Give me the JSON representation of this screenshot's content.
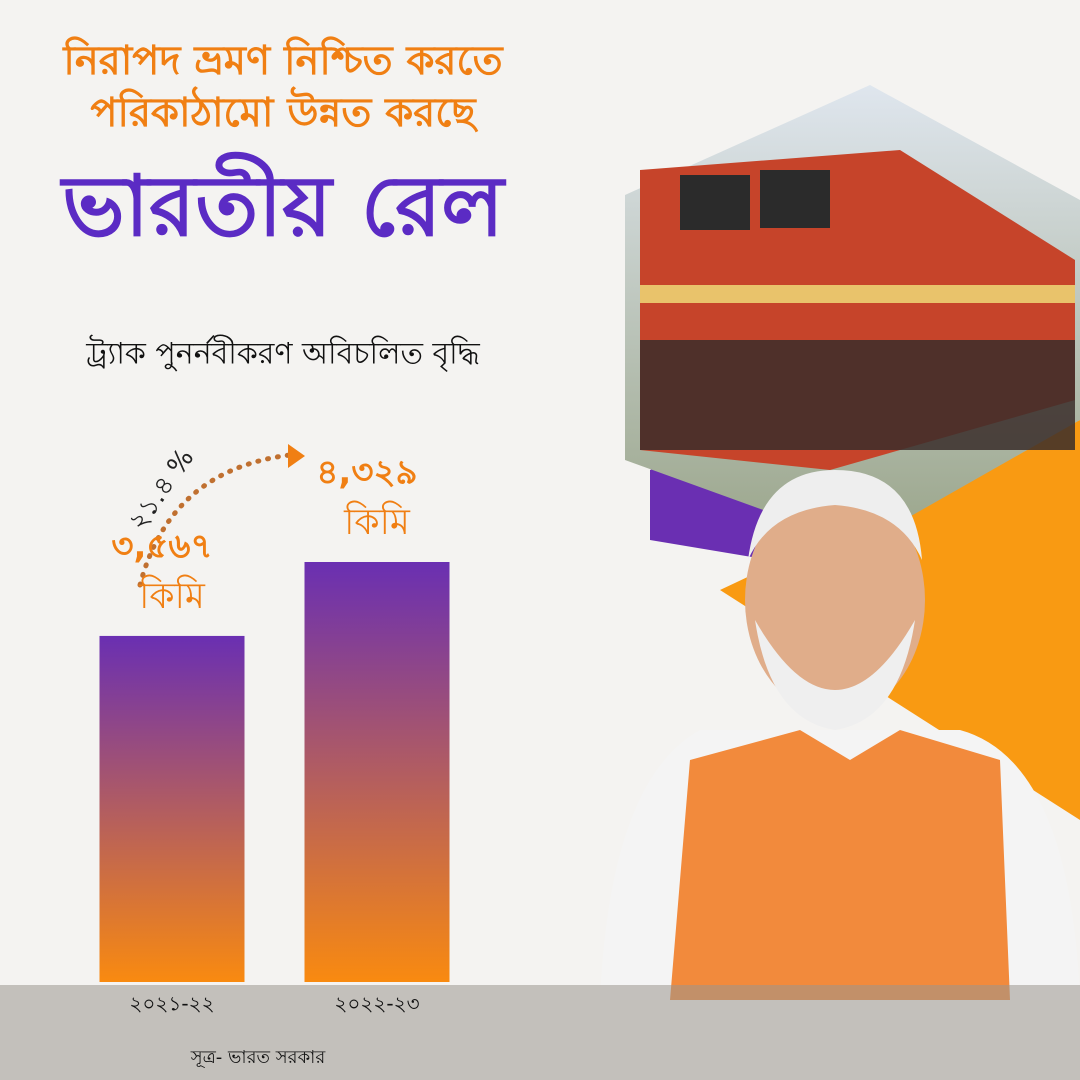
{
  "chart_data": {
    "type": "bar",
    "title_lines": [
      "নিরাপদ ভ্রমণ নিশ্চিত করতে",
      "পরিকাঠামো উন্নত করছে"
    ],
    "headline": "ভারতীয় রেল",
    "subtitle": "ট্র্যাক পুনর্নবীকরণ অবিচলিত বৃদ্ধি",
    "categories": [
      "২০২১-২২",
      "২০২২-২৩"
    ],
    "values": [
      3567,
      4329
    ],
    "value_labels": [
      "৩,৫৬৭",
      "৪,৩২৯"
    ],
    "unit": "কিমি",
    "growth_label": "২১.৪ %",
    "source": "সূত্র- ভারত সরকার",
    "color_top": "#6a2fb2",
    "color_bottom": "#f98a10"
  }
}
